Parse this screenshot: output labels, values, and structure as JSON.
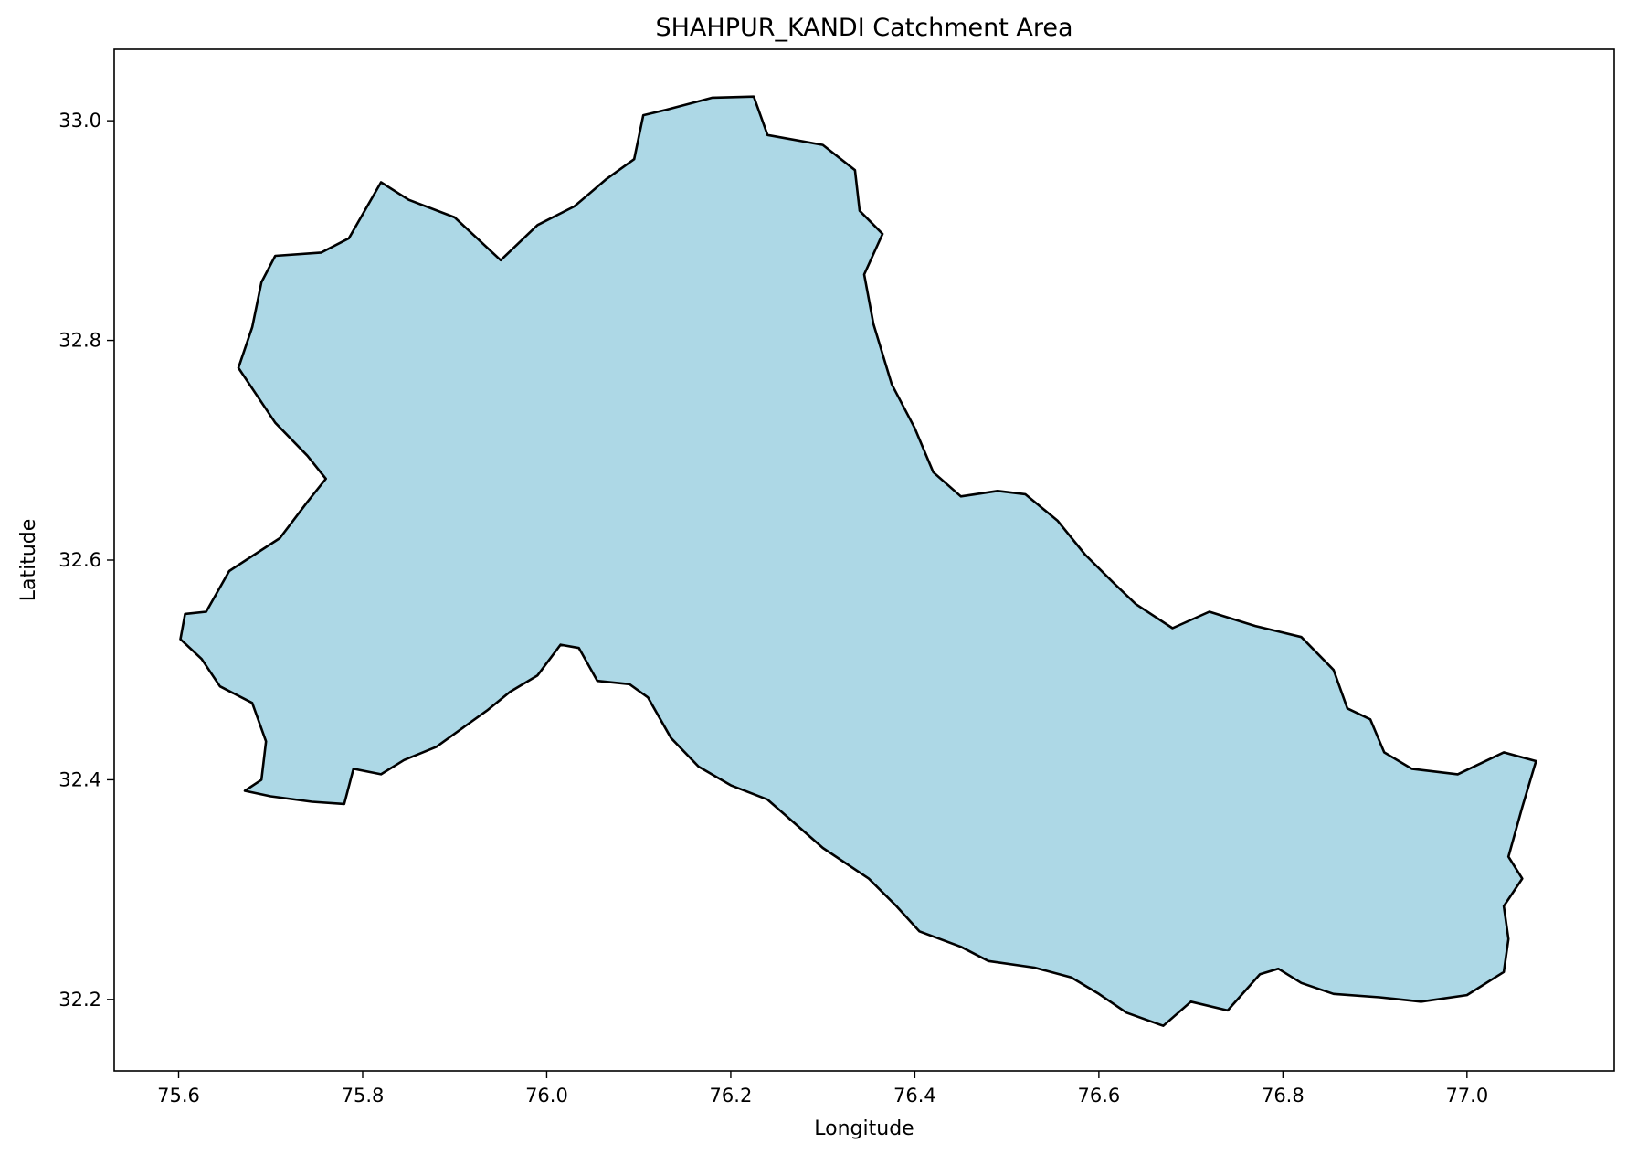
{
  "chart_data": {
    "type": "map",
    "title": "SHAHPUR_KANDI Catchment Area",
    "xlabel": "Longitude",
    "ylabel": "Latitude",
    "xlim": [
      75.53,
      77.16
    ],
    "ylim": [
      32.135,
      33.065
    ],
    "xticks": [
      75.6,
      75.8,
      76.0,
      76.2,
      76.4,
      76.6,
      76.8,
      77.0
    ],
    "xtick_labels": [
      "75.6",
      "75.8",
      "76.0",
      "76.2",
      "76.4",
      "76.6",
      "76.8",
      "77.0"
    ],
    "yticks": [
      32.2,
      32.4,
      32.6,
      32.8,
      33.0
    ],
    "ytick_labels": [
      "32.2",
      "32.4",
      "32.6",
      "32.8",
      "33.0"
    ],
    "grid": false,
    "fill_color": "#add8e6",
    "edge_color": "#000000",
    "boundary": [
      [
        75.607,
        32.551
      ],
      [
        75.63,
        32.553
      ],
      [
        75.655,
        32.59
      ],
      [
        75.71,
        32.62
      ],
      [
        75.74,
        32.653
      ],
      [
        75.76,
        32.674
      ],
      [
        75.74,
        32.695
      ],
      [
        75.705,
        32.725
      ],
      [
        75.665,
        32.775
      ],
      [
        75.68,
        32.812
      ],
      [
        75.69,
        32.853
      ],
      [
        75.705,
        32.877
      ],
      [
        75.755,
        32.88
      ],
      [
        75.785,
        32.893
      ],
      [
        75.82,
        32.944
      ],
      [
        75.85,
        32.928
      ],
      [
        75.9,
        32.912
      ],
      [
        75.95,
        32.873
      ],
      [
        75.99,
        32.905
      ],
      [
        76.03,
        32.922
      ],
      [
        76.065,
        32.947
      ],
      [
        76.095,
        32.965
      ],
      [
        76.105,
        33.005
      ],
      [
        76.13,
        33.01
      ],
      [
        76.18,
        33.021
      ],
      [
        76.225,
        33.022
      ],
      [
        76.24,
        32.987
      ],
      [
        76.3,
        32.978
      ],
      [
        76.335,
        32.955
      ],
      [
        76.34,
        32.918
      ],
      [
        76.365,
        32.897
      ],
      [
        76.345,
        32.86
      ],
      [
        76.355,
        32.815
      ],
      [
        76.375,
        32.76
      ],
      [
        76.4,
        32.72
      ],
      [
        76.42,
        32.68
      ],
      [
        76.45,
        32.658
      ],
      [
        76.49,
        32.663
      ],
      [
        76.52,
        32.66
      ],
      [
        76.555,
        32.636
      ],
      [
        76.585,
        32.605
      ],
      [
        76.615,
        32.58
      ],
      [
        76.64,
        32.56
      ],
      [
        76.68,
        32.538
      ],
      [
        76.72,
        32.553
      ],
      [
        76.77,
        32.54
      ],
      [
        76.82,
        32.53
      ],
      [
        76.855,
        32.5
      ],
      [
        76.87,
        32.465
      ],
      [
        76.895,
        32.455
      ],
      [
        76.91,
        32.425
      ],
      [
        76.94,
        32.41
      ],
      [
        76.99,
        32.405
      ],
      [
        77.04,
        32.425
      ],
      [
        77.075,
        32.417
      ],
      [
        77.06,
        32.375
      ],
      [
        77.045,
        32.33
      ],
      [
        77.06,
        32.31
      ],
      [
        77.04,
        32.285
      ],
      [
        77.045,
        32.255
      ],
      [
        77.04,
        32.225
      ],
      [
        77.0,
        32.204
      ],
      [
        76.95,
        32.198
      ],
      [
        76.905,
        32.202
      ],
      [
        76.855,
        32.205
      ],
      [
        76.82,
        32.215
      ],
      [
        76.795,
        32.228
      ],
      [
        76.775,
        32.223
      ],
      [
        76.74,
        32.19
      ],
      [
        76.7,
        32.198
      ],
      [
        76.67,
        32.176
      ],
      [
        76.63,
        32.188
      ],
      [
        76.6,
        32.205
      ],
      [
        76.57,
        32.22
      ],
      [
        76.53,
        32.229
      ],
      [
        76.48,
        32.235
      ],
      [
        76.45,
        32.248
      ],
      [
        76.405,
        32.262
      ],
      [
        76.38,
        32.285
      ],
      [
        76.35,
        32.31
      ],
      [
        76.3,
        32.338
      ],
      [
        76.27,
        32.36
      ],
      [
        76.24,
        32.382
      ],
      [
        76.2,
        32.395
      ],
      [
        76.165,
        32.412
      ],
      [
        76.135,
        32.438
      ],
      [
        76.11,
        32.475
      ],
      [
        76.09,
        32.487
      ],
      [
        76.055,
        32.49
      ],
      [
        76.035,
        32.52
      ],
      [
        76.015,
        32.523
      ],
      [
        75.99,
        32.495
      ],
      [
        75.96,
        32.48
      ],
      [
        75.935,
        32.463
      ],
      [
        75.905,
        32.445
      ],
      [
        75.88,
        32.43
      ],
      [
        75.845,
        32.418
      ],
      [
        75.82,
        32.405
      ],
      [
        75.79,
        32.41
      ],
      [
        75.78,
        32.378
      ],
      [
        75.745,
        32.38
      ],
      [
        75.7,
        32.385
      ],
      [
        75.672,
        32.39
      ],
      [
        75.69,
        32.4
      ],
      [
        75.695,
        32.435
      ],
      [
        75.68,
        32.47
      ],
      [
        75.645,
        32.485
      ],
      [
        75.625,
        32.51
      ],
      [
        75.602,
        32.528
      ]
    ]
  }
}
